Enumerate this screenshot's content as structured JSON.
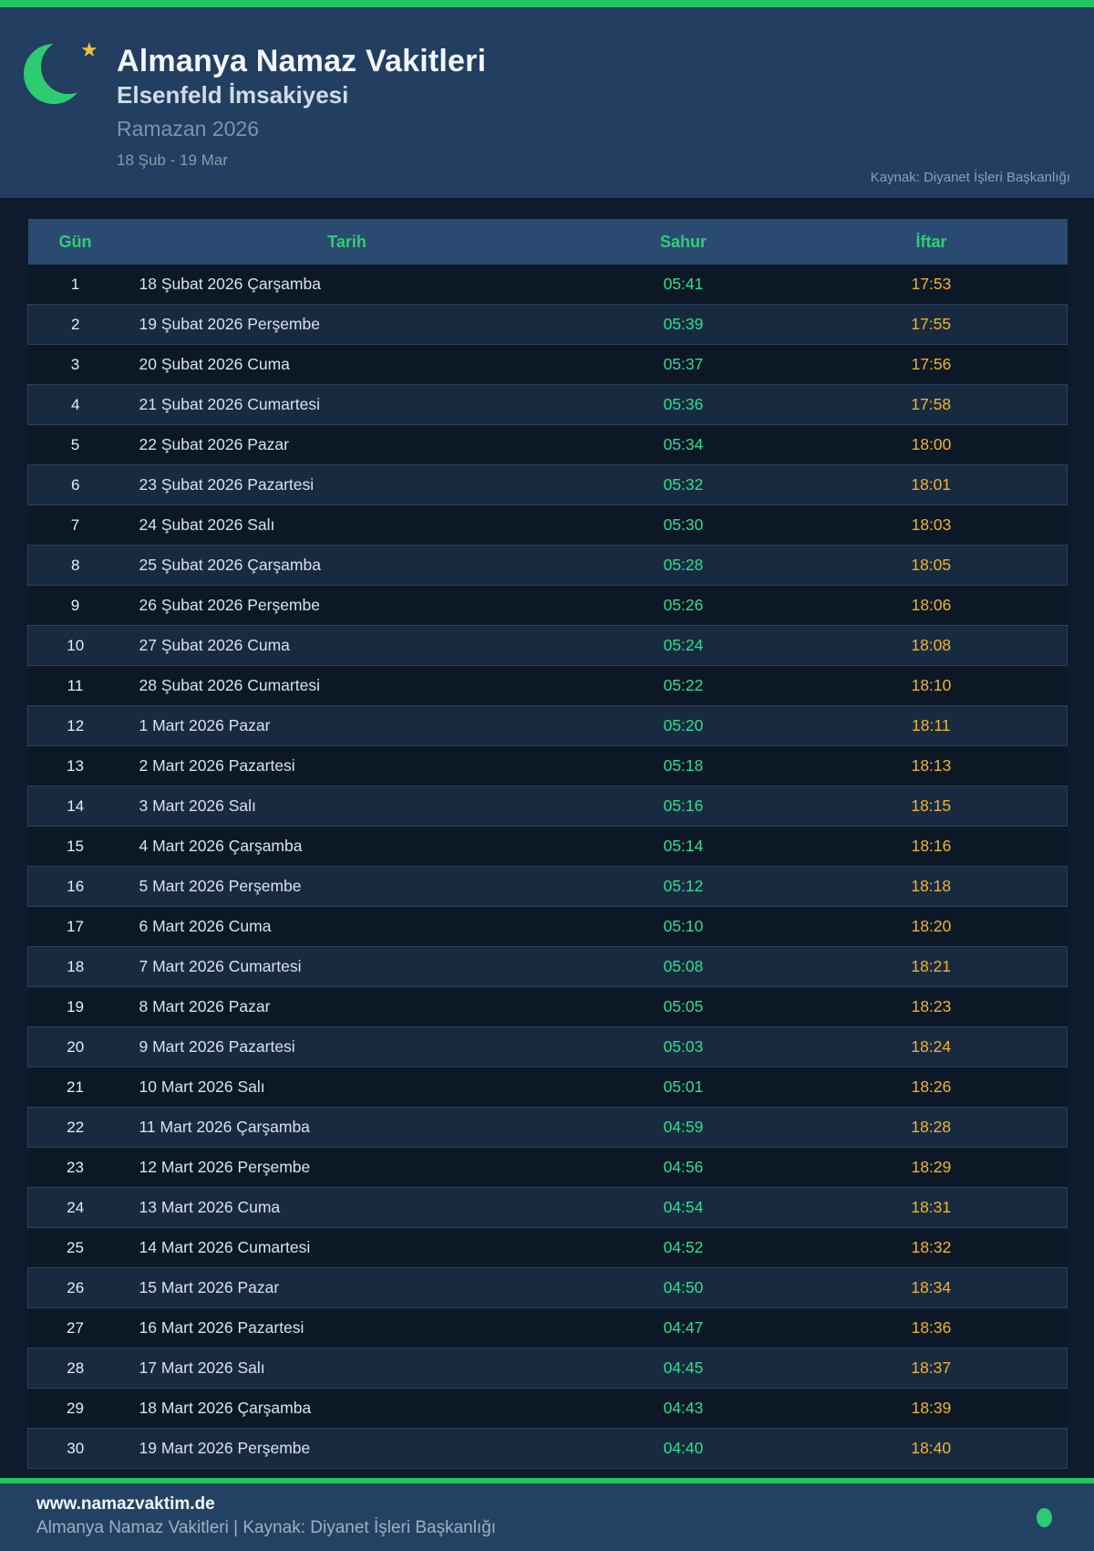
{
  "header": {
    "title": "Almanya Namaz Vakitleri",
    "subtitle": "Elsenfeld İmsakiyesi",
    "season": "Ramazan 2026",
    "date_range": "18 Şub - 19 Mar",
    "source": "Kaynak: Diyanet İşleri Başkanlığı",
    "star_glyph": "★"
  },
  "table": {
    "columns": [
      "Gün",
      "Tarih",
      "Sahur",
      "İftar"
    ],
    "rows": [
      {
        "gun": "1",
        "tarih": "18 Şubat 2026 Çarşamba",
        "sahur": "05:41",
        "iftar": "17:53"
      },
      {
        "gun": "2",
        "tarih": "19 Şubat 2026 Perşembe",
        "sahur": "05:39",
        "iftar": "17:55"
      },
      {
        "gun": "3",
        "tarih": "20 Şubat 2026 Cuma",
        "sahur": "05:37",
        "iftar": "17:56"
      },
      {
        "gun": "4",
        "tarih": "21 Şubat 2026 Cumartesi",
        "sahur": "05:36",
        "iftar": "17:58"
      },
      {
        "gun": "5",
        "tarih": "22 Şubat 2026 Pazar",
        "sahur": "05:34",
        "iftar": "18:00"
      },
      {
        "gun": "6",
        "tarih": "23 Şubat 2026 Pazartesi",
        "sahur": "05:32",
        "iftar": "18:01"
      },
      {
        "gun": "7",
        "tarih": "24 Şubat 2026 Salı",
        "sahur": "05:30",
        "iftar": "18:03"
      },
      {
        "gun": "8",
        "tarih": "25 Şubat 2026 Çarşamba",
        "sahur": "05:28",
        "iftar": "18:05"
      },
      {
        "gun": "9",
        "tarih": "26 Şubat 2026 Perşembe",
        "sahur": "05:26",
        "iftar": "18:06"
      },
      {
        "gun": "10",
        "tarih": "27 Şubat 2026 Cuma",
        "sahur": "05:24",
        "iftar": "18:08"
      },
      {
        "gun": "11",
        "tarih": "28 Şubat 2026 Cumartesi",
        "sahur": "05:22",
        "iftar": "18:10"
      },
      {
        "gun": "12",
        "tarih": "1 Mart 2026 Pazar",
        "sahur": "05:20",
        "iftar": "18:11"
      },
      {
        "gun": "13",
        "tarih": "2 Mart 2026 Pazartesi",
        "sahur": "05:18",
        "iftar": "18:13"
      },
      {
        "gun": "14",
        "tarih": "3 Mart 2026 Salı",
        "sahur": "05:16",
        "iftar": "18:15"
      },
      {
        "gun": "15",
        "tarih": "4 Mart 2026 Çarşamba",
        "sahur": "05:14",
        "iftar": "18:16"
      },
      {
        "gun": "16",
        "tarih": "5 Mart 2026 Perşembe",
        "sahur": "05:12",
        "iftar": "18:18"
      },
      {
        "gun": "17",
        "tarih": "6 Mart 2026 Cuma",
        "sahur": "05:10",
        "iftar": "18:20"
      },
      {
        "gun": "18",
        "tarih": "7 Mart 2026 Cumartesi",
        "sahur": "05:08",
        "iftar": "18:21"
      },
      {
        "gun": "19",
        "tarih": "8 Mart 2026 Pazar",
        "sahur": "05:05",
        "iftar": "18:23"
      },
      {
        "gun": "20",
        "tarih": "9 Mart 2026 Pazartesi",
        "sahur": "05:03",
        "iftar": "18:24"
      },
      {
        "gun": "21",
        "tarih": "10 Mart 2026 Salı",
        "sahur": "05:01",
        "iftar": "18:26"
      },
      {
        "gun": "22",
        "tarih": "11 Mart 2026 Çarşamba",
        "sahur": "04:59",
        "iftar": "18:28"
      },
      {
        "gun": "23",
        "tarih": "12 Mart 2026 Perşembe",
        "sahur": "04:56",
        "iftar": "18:29"
      },
      {
        "gun": "24",
        "tarih": "13 Mart 2026 Cuma",
        "sahur": "04:54",
        "iftar": "18:31"
      },
      {
        "gun": "25",
        "tarih": "14 Mart 2026 Cumartesi",
        "sahur": "04:52",
        "iftar": "18:32"
      },
      {
        "gun": "26",
        "tarih": "15 Mart 2026 Pazar",
        "sahur": "04:50",
        "iftar": "18:34"
      },
      {
        "gun": "27",
        "tarih": "16 Mart 2026 Pazartesi",
        "sahur": "04:47",
        "iftar": "18:36"
      },
      {
        "gun": "28",
        "tarih": "17 Mart 2026 Salı",
        "sahur": "04:45",
        "iftar": "18:37"
      },
      {
        "gun": "29",
        "tarih": "18 Mart 2026 Çarşamba",
        "sahur": "04:43",
        "iftar": "18:39"
      },
      {
        "gun": "30",
        "tarih": "19 Mart 2026 Perşembe",
        "sahur": "04:40",
        "iftar": "18:40"
      }
    ]
  },
  "footer": {
    "url": "www.namazvaktim.de",
    "caption": "Almanya Namaz Vakitleri | Kaynak: Diyanet İşleri Başkanlığı"
  },
  "colors": {
    "accent_green": "#25c360",
    "moon_green": "#2ecc71",
    "star_gold": "#f2c03c",
    "header_navy": "#223e61",
    "page_dark": "#0e1b2c",
    "table_header_bg": "#2b4a71",
    "table_header_text": "#31cd75",
    "sahur_green": "#30df8a",
    "iftar_gold": "#f0b42c",
    "row_even_bg": "#182a40",
    "row_odd_bg": "#0d1827",
    "footer_bg": "#234263"
  }
}
